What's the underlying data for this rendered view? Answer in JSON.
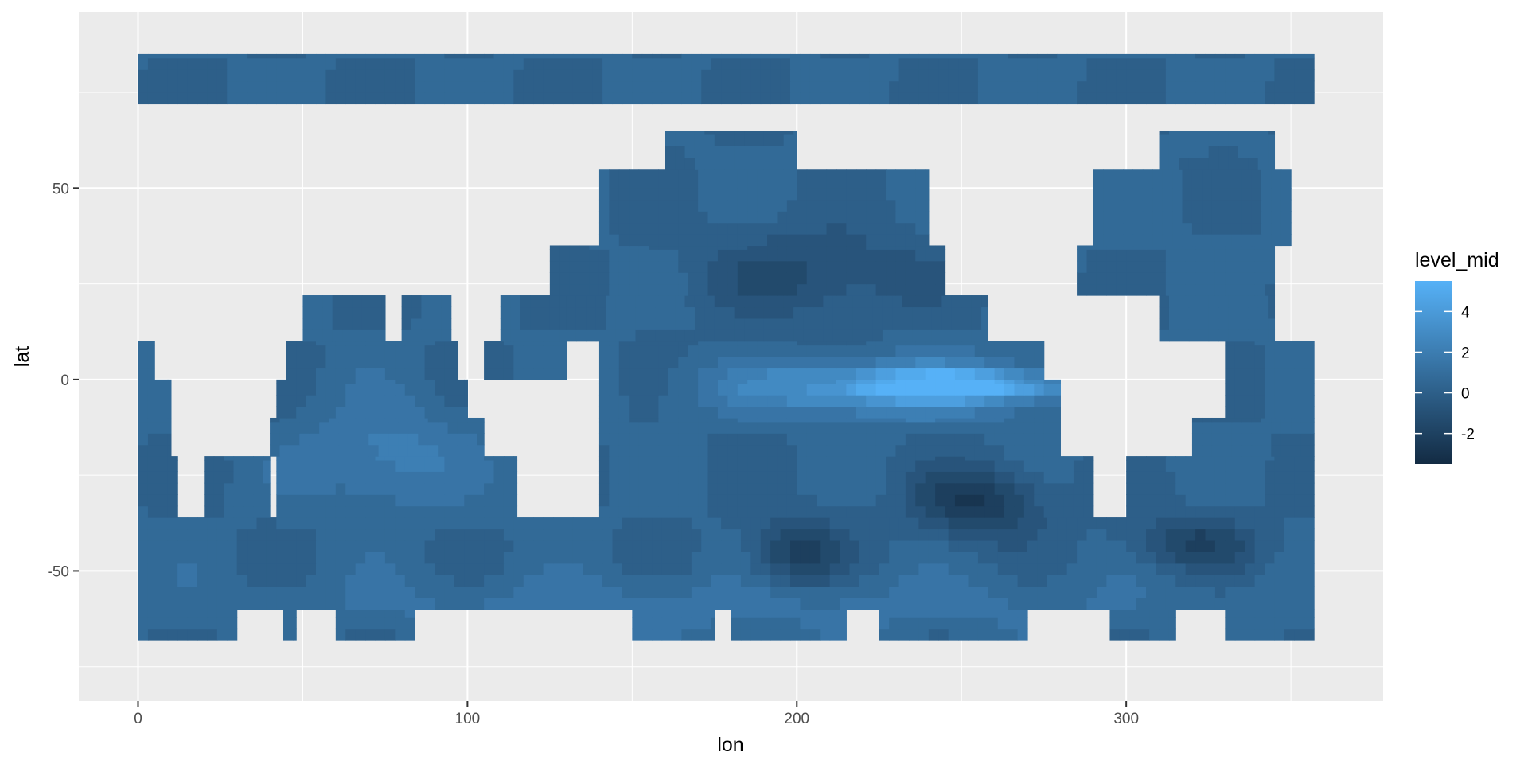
{
  "chart_data": {
    "type": "heatmap",
    "title": "",
    "xlabel": "lon",
    "ylabel": "lat",
    "xlim": [
      -18,
      378
    ],
    "ylim": [
      -84,
      96
    ],
    "x_ticks": [
      0,
      100,
      200,
      300
    ],
    "x_tick_labels": [
      "0",
      "100",
      "200",
      "300"
    ],
    "x_minor_ticks": [
      50,
      150,
      250,
      350
    ],
    "y_ticks": [
      -50,
      0,
      50
    ],
    "y_tick_labels": [
      "-50",
      "0",
      "50"
    ],
    "y_minor_ticks": [
      -75,
      -25,
      25,
      75
    ],
    "grid": true,
    "panel_background": "#ebebeb",
    "grid_color": "#ffffff",
    "legend": {
      "title": "level_mid",
      "position": "right",
      "range": [
        -3.5,
        5.5
      ],
      "breaks": [
        4,
        2,
        0,
        -2
      ],
      "break_labels": [
        "4",
        "2",
        "0",
        "-2"
      ],
      "color_low": "#132b43",
      "color_high": "#56b1f7"
    },
    "land_color": "#ebebeb",
    "ocean_mask": [
      {
        "lat": [
          -68,
          -60
        ],
        "lon": [
          [
            0,
            30
          ],
          [
            44,
            48
          ],
          [
            60,
            84
          ],
          [
            150,
            175
          ],
          [
            180,
            215
          ],
          [
            225,
            270
          ],
          [
            295,
            315
          ],
          [
            330,
            357
          ]
        ]
      },
      {
        "lat": [
          -60,
          -36
        ],
        "lon": [
          [
            0,
            357
          ]
        ]
      },
      {
        "lat": [
          -36,
          -20
        ],
        "lon": [
          [
            0,
            12
          ],
          [
            20,
            40
          ],
          [
            42,
            115
          ],
          [
            140,
            290
          ],
          [
            300,
            357
          ]
        ]
      },
      {
        "lat": [
          -20,
          -10
        ],
        "lon": [
          [
            0,
            10
          ],
          [
            40,
            105
          ],
          [
            140,
            280
          ],
          [
            320,
            357
          ]
        ]
      },
      {
        "lat": [
          -10,
          0
        ],
        "lon": [
          [
            0,
            10
          ],
          [
            42,
            100
          ],
          [
            140,
            280
          ],
          [
            330,
            357
          ]
        ]
      },
      {
        "lat": [
          0,
          10
        ],
        "lon": [
          [
            0,
            5
          ],
          [
            45,
            97
          ],
          [
            105,
            130
          ],
          [
            140,
            275
          ],
          [
            330,
            357
          ]
        ]
      },
      {
        "lat": [
          10,
          22
        ],
        "lon": [
          [
            50,
            75
          ],
          [
            80,
            95
          ],
          [
            110,
            130
          ],
          [
            130,
            258
          ],
          [
            310,
            345
          ]
        ]
      },
      {
        "lat": [
          22,
          35
        ],
        "lon": [
          [
            125,
            245
          ],
          [
            285,
            345
          ]
        ]
      },
      {
        "lat": [
          35,
          55
        ],
        "lon": [
          [
            140,
            240
          ],
          [
            290,
            350
          ]
        ]
      },
      {
        "lat": [
          55,
          65
        ],
        "lon": [
          [
            160,
            200
          ],
          [
            310,
            345
          ]
        ]
      },
      {
        "lat": [
          72,
          85
        ],
        "lon": [
          [
            0,
            357
          ]
        ]
      }
    ],
    "value_field": [
      {
        "name": "equatorial-warm-tongue",
        "lon": [
          175,
          282
        ],
        "lat": [
          -10,
          6
        ],
        "value": 4.5
      },
      {
        "name": "equatorial-core",
        "lon": [
          220,
          280
        ],
        "lat": [
          -5,
          2
        ],
        "value": 5.5
      },
      {
        "name": "southeast-pacific-cold",
        "lon": [
          235,
          275
        ],
        "lat": [
          -42,
          -22
        ],
        "value": -3.0
      },
      {
        "name": "south-pacific-cold",
        "lon": [
          185,
          215
        ],
        "lat": [
          -55,
          -35
        ],
        "value": -2.5
      },
      {
        "name": "north-pacific-cold",
        "lon": [
          170,
          240
        ],
        "lat": [
          15,
          40
        ],
        "value": -1.5
      },
      {
        "name": "indian-ocean-warm",
        "lon": [
          50,
          100
        ],
        "lat": [
          -35,
          -5
        ],
        "value": 2.5
      },
      {
        "name": "south-atlantic-cold",
        "lon": [
          300,
          340
        ],
        "lat": [
          -50,
          -35
        ],
        "value": -2.0
      },
      {
        "name": "southern-ocean-mid",
        "lon": [
          0,
          357
        ],
        "lat": [
          -68,
          -50
        ],
        "value": 1.5
      },
      {
        "name": "north-atlantic-mid",
        "lon": [
          290,
          345
        ],
        "lat": [
          25,
          60
        ],
        "value": 0.5
      }
    ]
  }
}
